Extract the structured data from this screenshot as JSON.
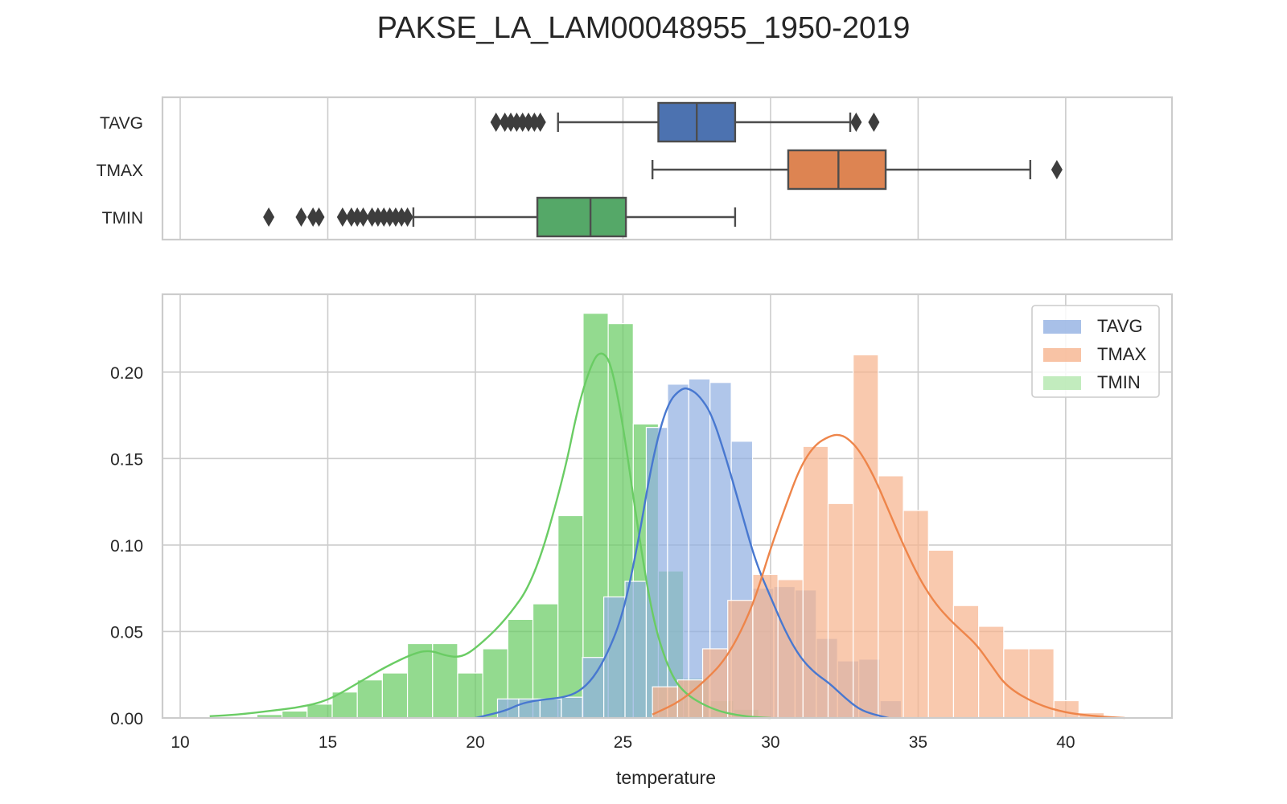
{
  "chart_data": [
    {
      "type": "box",
      "title": "PAKSE_LA_LAM00048955_1950-2019",
      "categories": [
        "TAVG",
        "TMAX",
        "TMIN"
      ],
      "xlim": [
        9.4,
        43.6
      ],
      "grid": true,
      "boxes": [
        {
          "name": "TAVG",
          "color": "#4c72b0",
          "whisker_low": 22.8,
          "q1": 26.2,
          "median": 27.5,
          "q3": 28.8,
          "whisker_high": 32.7,
          "outliers": [
            20.7,
            21.0,
            21.2,
            21.4,
            21.6,
            21.8,
            22.0,
            22.2,
            32.9,
            33.5
          ]
        },
        {
          "name": "TMAX",
          "color": "#dd8452",
          "whisker_low": 26.0,
          "q1": 30.6,
          "median": 32.3,
          "q3": 33.9,
          "whisker_high": 38.8,
          "outliers": [
            39.7
          ]
        },
        {
          "name": "TMIN",
          "color": "#55a868",
          "whisker_low": 17.9,
          "q1": 22.1,
          "median": 23.9,
          "q3": 25.1,
          "whisker_high": 28.8,
          "outliers": [
            13.0,
            14.1,
            14.5,
            14.7,
            15.5,
            15.8,
            16.0,
            16.2,
            16.5,
            16.7,
            16.9,
            17.1,
            17.3,
            17.5,
            17.7
          ]
        }
      ]
    },
    {
      "type": "histogram",
      "xlabel": "temperature",
      "ylabel": "",
      "xlim": [
        9.4,
        43.6
      ],
      "ylim": [
        0,
        0.245
      ],
      "xticks": [
        10,
        15,
        20,
        25,
        30,
        35,
        40
      ],
      "yticks": [
        0.0,
        0.05,
        0.1,
        0.15,
        0.2
      ],
      "ytick_labels": [
        "0.00",
        "0.05",
        "0.10",
        "0.15",
        "0.20"
      ],
      "grid": true,
      "legend_position": "top-right",
      "series": [
        {
          "name": "TMIN",
          "color": "#6acc64",
          "bin_start": 10.9,
          "bin_width": 0.85,
          "values": [
            0.0,
            0.0,
            0.002,
            0.004,
            0.008,
            0.015,
            0.022,
            0.026,
            0.043,
            0.043,
            0.026,
            0.04,
            0.057,
            0.066,
            0.117,
            0.234,
            0.228,
            0.17,
            0.085,
            0.023,
            0.01,
            0.005
          ],
          "kde_x": [
            11,
            12,
            13,
            14,
            15,
            16,
            17,
            18,
            18.5,
            19,
            19.5,
            20,
            21,
            22,
            23,
            23.5,
            24,
            24.3,
            24.6,
            25,
            25.5,
            26,
            26.5,
            27,
            28,
            29,
            30
          ],
          "kde_y": [
            0.001,
            0.002,
            0.004,
            0.006,
            0.01,
            0.02,
            0.03,
            0.038,
            0.039,
            0.036,
            0.035,
            0.04,
            0.056,
            0.08,
            0.14,
            0.182,
            0.208,
            0.212,
            0.205,
            0.17,
            0.11,
            0.058,
            0.03,
            0.015,
            0.005,
            0.001,
            0.0
          ]
        },
        {
          "name": "TAVG",
          "color": "#92b0e2",
          "bin_start": 20.75,
          "bin_width": 0.72,
          "values": [
            0.011,
            0.011,
            0.011,
            0.012,
            0.035,
            0.07,
            0.079,
            0.168,
            0.193,
            0.196,
            0.194,
            0.16,
            0.075,
            0.076,
            0.074,
            0.046,
            0.033,
            0.034,
            0.01
          ],
          "kde_x": [
            20,
            21,
            21.5,
            22,
            22.5,
            23,
            23.5,
            24,
            24.5,
            25,
            25.5,
            26,
            26.5,
            27,
            27.3,
            27.6,
            28,
            28.5,
            29,
            29.5,
            30,
            30.5,
            31,
            31.5,
            32,
            32.5,
            33,
            33.5,
            34
          ],
          "kde_y": [
            0.0,
            0.004,
            0.008,
            0.01,
            0.011,
            0.012,
            0.015,
            0.023,
            0.038,
            0.06,
            0.1,
            0.15,
            0.182,
            0.191,
            0.19,
            0.186,
            0.176,
            0.15,
            0.12,
            0.09,
            0.07,
            0.05,
            0.035,
            0.026,
            0.02,
            0.012,
            0.005,
            0.002,
            0.0
          ]
        },
        {
          "name": "TMAX",
          "color": "#f6b48f",
          "bin_start": 26.0,
          "bin_width": 0.85,
          "values": [
            0.018,
            0.022,
            0.04,
            0.068,
            0.083,
            0.08,
            0.157,
            0.124,
            0.21,
            0.14,
            0.12,
            0.097,
            0.065,
            0.053,
            0.04,
            0.04,
            0.01,
            0.003
          ],
          "kde_x": [
            26,
            27,
            28,
            28.5,
            29,
            29.5,
            30,
            30.5,
            31,
            31.5,
            32,
            32.3,
            32.6,
            33,
            33.5,
            34,
            34.5,
            35,
            35.5,
            36,
            36.5,
            37,
            37.5,
            38,
            39,
            40,
            41,
            42
          ],
          "kde_y": [
            0.002,
            0.01,
            0.025,
            0.035,
            0.05,
            0.07,
            0.098,
            0.122,
            0.145,
            0.158,
            0.163,
            0.164,
            0.162,
            0.155,
            0.14,
            0.12,
            0.1,
            0.082,
            0.068,
            0.058,
            0.05,
            0.042,
            0.03,
            0.018,
            0.008,
            0.003,
            0.001,
            0.0
          ]
        }
      ],
      "legend": [
        "TAVG",
        "TMAX",
        "TMIN"
      ]
    }
  ],
  "colors": {
    "TAVG_box": "#4c72b0",
    "TMAX_box": "#dd8452",
    "TMIN_box": "#55a868",
    "TAVG_line": "#4878d0",
    "TMAX_line": "#ee854a",
    "TMIN_line": "#6acc64",
    "TAVG_fill": "#92b0e2",
    "TMAX_fill": "#f6b48f",
    "TMIN_fill": "#b3e7ae",
    "grid": "#cccccc",
    "frame": "#cccccc",
    "text": "#262626",
    "whisker": "#4d4d4d"
  }
}
